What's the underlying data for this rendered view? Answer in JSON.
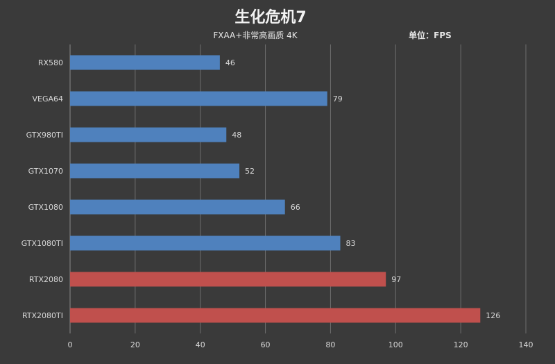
{
  "chart_data": {
    "type": "bar",
    "orientation": "horizontal",
    "title": "生化危机7",
    "subtitle": "FXAA+非常高画质 4K",
    "unit_label": "单位：FPS",
    "categories": [
      "RX580",
      "VEGA64",
      "GTX980TI",
      "GTX1070",
      "GTX1080",
      "GTX1080TI",
      "RTX2080",
      "RTX2080TI"
    ],
    "values": [
      46,
      79,
      48,
      52,
      66,
      83,
      97,
      126
    ],
    "bar_colors": [
      "#4f81bd",
      "#4f81bd",
      "#4f81bd",
      "#4f81bd",
      "#4f81bd",
      "#4f81bd",
      "#c0504d",
      "#c0504d"
    ],
    "xlim": [
      0,
      140
    ],
    "xticks": [
      0,
      20,
      40,
      60,
      80,
      100,
      120,
      140
    ],
    "grid": true,
    "legend": "none",
    "background": "#3a3a3a"
  }
}
